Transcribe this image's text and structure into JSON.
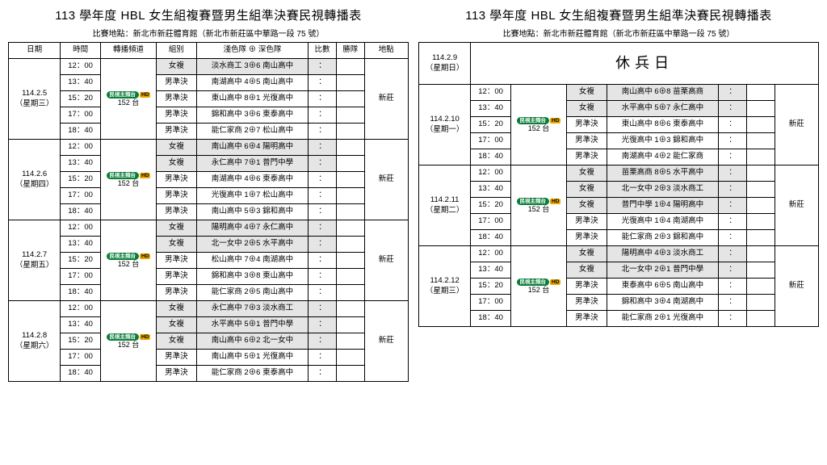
{
  "title": "113 學年度 HBL 女生組複賽暨男生組準決賽民視轉播表",
  "subtitle": "比賽地點：新北市新莊體育館（新北市新莊區中華路一段 75 號）",
  "headers": {
    "date": "日期",
    "time": "時間",
    "channel": "轉播頻道",
    "group": "組別",
    "match": "淺色隊 ⊕ 深色隊",
    "score": "比數",
    "winner": "勝隊",
    "loc": "地點"
  },
  "channel": {
    "badge": "民視主頻台",
    "hd": "HD",
    "num": "152 台"
  },
  "location": "新莊",
  "rest": {
    "date": "114.2.9",
    "day": "（星期日）",
    "label": "休兵日"
  },
  "leftDays": [
    {
      "date": "114.2.5",
      "day": "（星期三）",
      "loc": "新莊",
      "rows": [
        {
          "t": "12：00",
          "g": "女複",
          "m": "淡水商工 3⊕6 南山高中",
          "gray": true
        },
        {
          "t": "13：40",
          "g": "男準決",
          "m": "南湖高中 4⊕5 南山高中",
          "gray": false
        },
        {
          "t": "15：20",
          "g": "男準決",
          "m": "東山高中 8⊕1 光復高中",
          "gray": false
        },
        {
          "t": "17：00",
          "g": "男準決",
          "m": "錦和高中 3⊕6 東泰高中",
          "gray": false
        },
        {
          "t": "18：40",
          "g": "男準決",
          "m": "能仁家商 2⊕7 松山高中",
          "gray": false
        }
      ]
    },
    {
      "date": "114.2.6",
      "day": "（星期四）",
      "loc": "新莊",
      "rows": [
        {
          "t": "12：00",
          "g": "女複",
          "m": "南山高中 6⊕4 陽明高中",
          "gray": true
        },
        {
          "t": "13：40",
          "g": "女複",
          "m": "永仁高中 7⊕1 普門中學",
          "gray": true
        },
        {
          "t": "15：20",
          "g": "男準決",
          "m": "南湖高中 4⊕6 東泰高中",
          "gray": false
        },
        {
          "t": "17：00",
          "g": "男準決",
          "m": "光復高中 1⊕7 松山高中",
          "gray": false
        },
        {
          "t": "18：40",
          "g": "男準決",
          "m": "南山高中 5⊕3 錦和高中",
          "gray": false
        }
      ]
    },
    {
      "date": "114.2.7",
      "day": "（星期五）",
      "loc": "新莊",
      "rows": [
        {
          "t": "12：00",
          "g": "女複",
          "m": "陽明高中 4⊕7 永仁高中",
          "gray": true
        },
        {
          "t": "13：40",
          "g": "女複",
          "m": "北一女中 2⊕5 水平高中",
          "gray": true
        },
        {
          "t": "15：20",
          "g": "男準決",
          "m": "松山高中 7⊕4 南湖高中",
          "gray": false
        },
        {
          "t": "17：00",
          "g": "男準決",
          "m": "錦和高中 3⊕8 東山高中",
          "gray": false
        },
        {
          "t": "18：40",
          "g": "男準決",
          "m": "能仁家商 2⊕5 南山高中",
          "gray": false
        }
      ]
    },
    {
      "date": "114.2.8",
      "day": "（星期六）",
      "loc": "新莊",
      "rows": [
        {
          "t": "12：00",
          "g": "女複",
          "m": "永仁高中 7⊕3 淡水商工",
          "gray": true
        },
        {
          "t": "13：40",
          "g": "女複",
          "m": "水平高中 5⊕1 普門中學",
          "gray": true
        },
        {
          "t": "15：20",
          "g": "女複",
          "m": "南山高中 6⊕2 北一女中",
          "gray": true
        },
        {
          "t": "17：00",
          "g": "男準決",
          "m": "南山高中 5⊕1 光復高中",
          "gray": false
        },
        {
          "t": "18：40",
          "g": "男準決",
          "m": "能仁家商 2⊕6 東泰高中",
          "gray": false
        }
      ]
    }
  ],
  "rightDays": [
    {
      "date": "114.2.10",
      "day": "（星期一）",
      "loc": "新莊",
      "rows": [
        {
          "t": "12：00",
          "g": "女複",
          "m": "南山高中 6⊕8 苗栗高商",
          "gray": true
        },
        {
          "t": "13：40",
          "g": "女複",
          "m": "水平高中 5⊕7 永仁高中",
          "gray": true
        },
        {
          "t": "15：20",
          "g": "男準決",
          "m": "東山高中 8⊕6 東泰高中",
          "gray": false
        },
        {
          "t": "17：00",
          "g": "男準決",
          "m": "光復高中 1⊕3 錦和高中",
          "gray": false
        },
        {
          "t": "18：40",
          "g": "男準決",
          "m": "南湖高中 4⊕2 能仁家商",
          "gray": false
        }
      ]
    },
    {
      "date": "114.2.11",
      "day": "（星期二）",
      "loc": "新莊",
      "rows": [
        {
          "t": "12：00",
          "g": "女複",
          "m": "苗栗高商 8⊕5 水平高中",
          "gray": true
        },
        {
          "t": "13：40",
          "g": "女複",
          "m": "北一女中 2⊕3 淡水商工",
          "gray": true
        },
        {
          "t": "15：20",
          "g": "女複",
          "m": "普門中學 1⊕4 陽明高中",
          "gray": true
        },
        {
          "t": "17：00",
          "g": "男準決",
          "m": "光復高中 1⊕4 南湖高中",
          "gray": false
        },
        {
          "t": "18：40",
          "g": "男準決",
          "m": "能仁家商 2⊕3 錦和高中",
          "gray": false
        }
      ]
    },
    {
      "date": "114.2.12",
      "day": "（星期三）",
      "loc": "新莊",
      "rows": [
        {
          "t": "12：00",
          "g": "女複",
          "m": "陽明高中 4⊕3 淡水商工",
          "gray": true
        },
        {
          "t": "13：40",
          "g": "女複",
          "m": "北一女中 2⊕1 普門中學",
          "gray": true
        },
        {
          "t": "15：20",
          "g": "男準決",
          "m": "東泰高中 6⊕5 南山高中",
          "gray": false
        },
        {
          "t": "17：00",
          "g": "男準決",
          "m": "錦和高中 3⊕4 南湖高中",
          "gray": false
        },
        {
          "t": "18：40",
          "g": "男準決",
          "m": "能仁家商 2⊕1 光復高中",
          "gray": false
        }
      ]
    }
  ]
}
